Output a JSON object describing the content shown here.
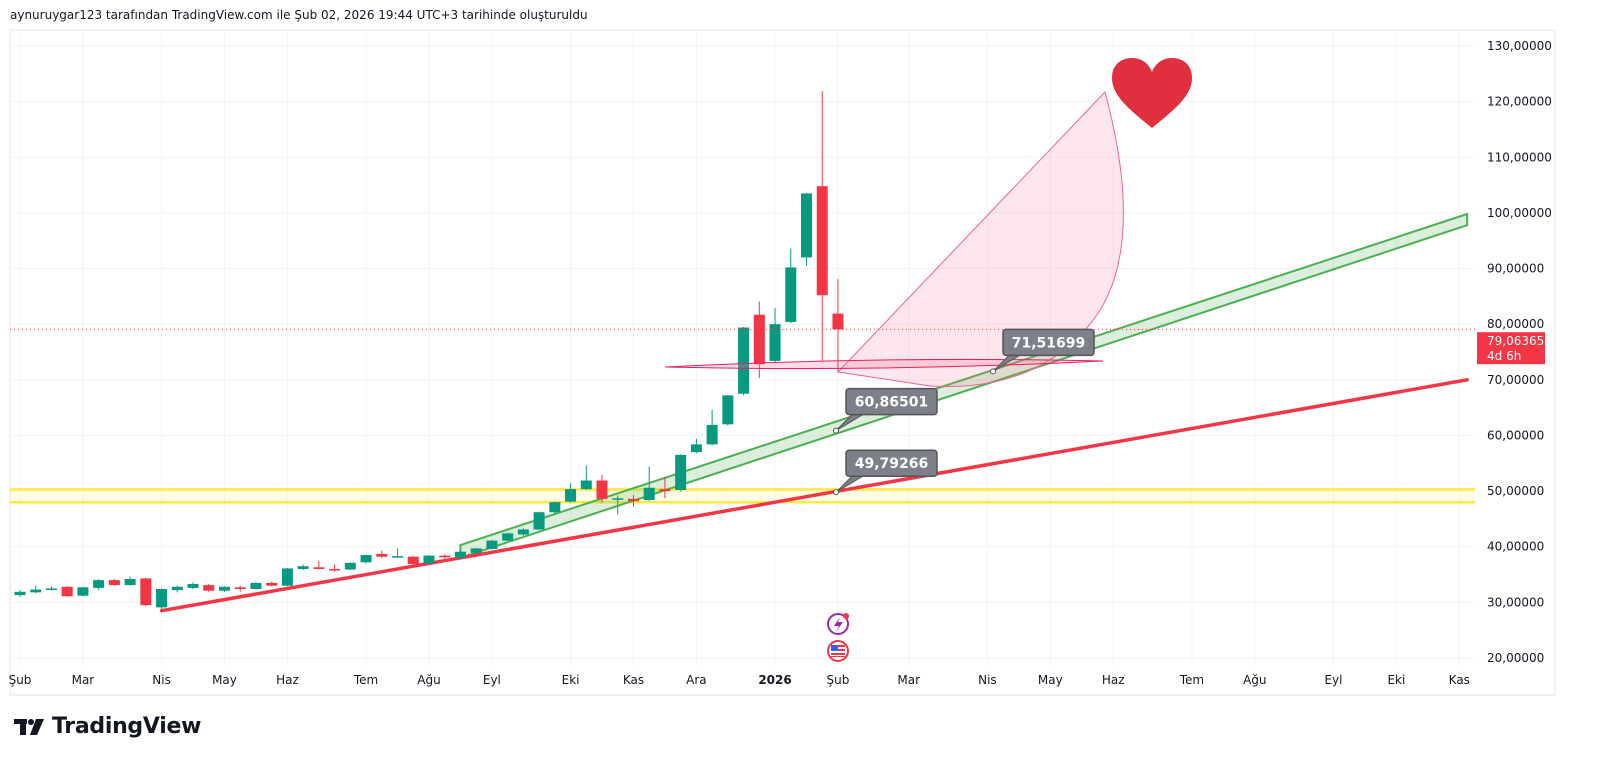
{
  "header": {
    "title": "aynuruygar123 tarafından TradingView.com ile Şub 02, 2026 19:44 UTC+3 tarihinde oluşturuldu"
  },
  "footer": {
    "logo_text": "TradingView"
  },
  "colors": {
    "up": "#089981",
    "down": "#f23645",
    "trend_red": "#f23645",
    "channel_green": "#4caf50",
    "yellow": "#ffeb3b",
    "callout": "#7d8089",
    "heart": "#e0303f"
  },
  "chart_data": {
    "type": "candlestick",
    "title": "",
    "interval": "weekly",
    "ylim": [
      20,
      130
    ],
    "y_ticks": [
      "130,00000",
      "120,00000",
      "110,00000",
      "100,00000",
      "90,00000",
      "80,00000",
      "70,00000",
      "60,00000",
      "50,00000",
      "40,00000",
      "30,00000",
      "20,00000"
    ],
    "y_tick_values": [
      130,
      120,
      110,
      100,
      90,
      80,
      70,
      60,
      50,
      40,
      30,
      20
    ],
    "x_ticks": [
      "Şub",
      "Mar",
      "Nis",
      "May",
      "Haz",
      "Tem",
      "Ağu",
      "Eyl",
      "Eki",
      "Kas",
      "Ara",
      "2026",
      "Şub",
      "Mar",
      "Nis",
      "May",
      "Haz",
      "Tem",
      "Ağu",
      "Eyl",
      "Eki",
      "Kas"
    ],
    "x_tick_week_index": [
      0,
      4,
      9,
      13,
      17,
      22,
      26,
      30,
      35,
      39,
      43,
      48,
      52,
      56.5,
      61.5,
      65.5,
      69.5,
      74.5,
      78.5,
      83.5,
      87.5,
      91.5
    ],
    "ohlc": [
      [
        31.3,
        32.2,
        31.0,
        31.9
      ],
      [
        31.8,
        33.0,
        31.6,
        32.3
      ],
      [
        32.3,
        32.9,
        32.1,
        32.5
      ],
      [
        32.8,
        32.9,
        31.0,
        31.1
      ],
      [
        31.2,
        32.8,
        31.1,
        32.7
      ],
      [
        32.6,
        34.2,
        32.2,
        34.0
      ],
      [
        34.0,
        34.2,
        33.0,
        33.1
      ],
      [
        33.1,
        34.6,
        33.0,
        34.2
      ],
      [
        34.3,
        34.4,
        29.3,
        29.5
      ],
      [
        29.1,
        32.5,
        28.6,
        32.4
      ],
      [
        32.2,
        33.0,
        31.8,
        32.8
      ],
      [
        32.6,
        33.6,
        32.4,
        33.3
      ],
      [
        33.1,
        33.3,
        31.9,
        32.1
      ],
      [
        32.1,
        32.9,
        31.9,
        32.8
      ],
      [
        32.7,
        33.0,
        31.9,
        32.4
      ],
      [
        32.4,
        33.6,
        32.3,
        33.5
      ],
      [
        33.5,
        33.7,
        32.9,
        33.0
      ],
      [
        33.0,
        36.2,
        32.9,
        36.1
      ],
      [
        36.0,
        36.8,
        35.8,
        36.5
      ],
      [
        36.3,
        37.5,
        35.9,
        36.0
      ],
      [
        36.0,
        36.8,
        35.5,
        35.95
      ],
      [
        35.9,
        37.2,
        35.8,
        37.1
      ],
      [
        37.2,
        38.6,
        37.0,
        38.5
      ],
      [
        38.7,
        39.3,
        38.0,
        38.2
      ],
      [
        38.3,
        39.7,
        38.2,
        38.3
      ],
      [
        38.2,
        38.4,
        36.8,
        36.9
      ],
      [
        37.0,
        38.5,
        36.9,
        38.4
      ],
      [
        38.4,
        38.6,
        37.9,
        38.1
      ],
      [
        38.0,
        39.2,
        37.8,
        39.1
      ],
      [
        38.9,
        39.8,
        38.7,
        39.7
      ],
      [
        39.6,
        41.2,
        39.5,
        41.1
      ],
      [
        41.1,
        42.5,
        41.0,
        42.4
      ],
      [
        42.2,
        43.3,
        42.0,
        43.1
      ],
      [
        43.1,
        46.3,
        43.0,
        46.2
      ],
      [
        46.2,
        48.1,
        45.9,
        48.0
      ],
      [
        48.1,
        51.4,
        47.9,
        50.35
      ],
      [
        50.35,
        54.6,
        50.2,
        51.9
      ],
      [
        51.9,
        52.9,
        47.9,
        48.6
      ],
      [
        48.5,
        49.2,
        45.8,
        48.7
      ],
      [
        48.6,
        49.3,
        47.2,
        48.2
      ],
      [
        48.4,
        54.4,
        48.2,
        50.6
      ],
      [
        50.35,
        52.5,
        48.7,
        50.0
      ],
      [
        50.2,
        56.6,
        49.9,
        56.5
      ],
      [
        57.0,
        59.4,
        56.8,
        58.4
      ],
      [
        58.4,
        64.6,
        58.2,
        61.9
      ],
      [
        62.0,
        67.3,
        61.8,
        67.2
      ],
      [
        67.5,
        79.5,
        67.2,
        79.4
      ],
      [
        81.7,
        84.1,
        70.3,
        72.8
      ],
      [
        73.4,
        82.9,
        73.2,
        80.0
      ],
      [
        80.4,
        93.6,
        80.2,
        90.2
      ],
      [
        92.0,
        103.6,
        90.5,
        103.5
      ],
      [
        104.8,
        121.9,
        73.4,
        85.2
      ],
      [
        81.9,
        88.1,
        71.3,
        79.06365
      ]
    ],
    "last_price": {
      "value": 79.06365,
      "label": "79,06365",
      "countdown": "4d 6h"
    },
    "horizontal_levels": [
      50.3,
      48.0
    ],
    "callouts": [
      {
        "label": "71,51699",
        "value": 71.51699
      },
      {
        "label": "60,86501",
        "value": 60.86501
      },
      {
        "label": "49,79266",
        "value": 49.79266
      }
    ],
    "trendlines": [
      {
        "name": "support-red",
        "from": {
          "week": 9,
          "price": 28.5
        },
        "to": {
          "week": 92,
          "price": 70.0
        }
      },
      {
        "name": "channel-green-top",
        "from": {
          "week": 28,
          "price": 40.3
        },
        "to": {
          "week": 92,
          "price": 99.8
        }
      },
      {
        "name": "channel-green-bottom",
        "from": {
          "week": 28,
          "price": 38.0
        },
        "to": {
          "week": 92,
          "price": 97.8
        }
      }
    ]
  }
}
